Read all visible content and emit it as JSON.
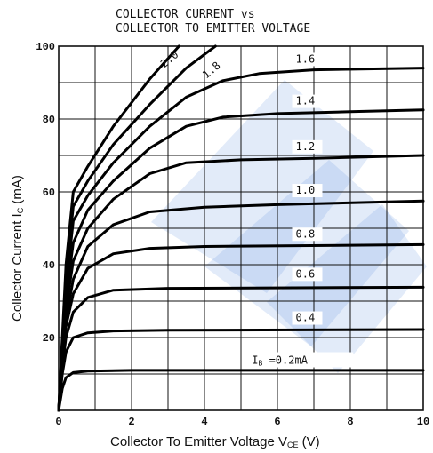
{
  "chart_data": {
    "type": "line",
    "title": [
      "COLLECTOR CURRENT vs",
      "COLLECTOR TO EMITTER VOLTAGE"
    ],
    "xlabel": "Collector To Emitter Voltage  V",
    "xlabel_sub": "CE",
    "xlabel_unit": " (V)",
    "ylabel": "Collector Current  I",
    "ylabel_sub": "C",
    "ylabel_unit": " (mA)",
    "xlim": [
      0,
      10
    ],
    "ylim": [
      0,
      100
    ],
    "grid": true,
    "x_ticks": [
      {
        "value": 0,
        "label": "0"
      },
      {
        "value": 2,
        "label": "2"
      },
      {
        "value": 4,
        "label": "4"
      },
      {
        "value": 6,
        "label": "6"
      },
      {
        "value": 8,
        "label": "8"
      },
      {
        "value": 10,
        "label": "10"
      }
    ],
    "y_ticks": [
      {
        "value": 20,
        "label": "20"
      },
      {
        "value": 40,
        "label": "40"
      },
      {
        "value": 60,
        "label": "60"
      },
      {
        "value": 80,
        "label": "80"
      },
      {
        "value": 100,
        "label": "100"
      }
    ],
    "series": [
      {
        "name": "0.2",
        "label": "Iʙ =0.2mA",
        "points": [
          [
            0,
            0
          ],
          [
            0.1,
            6
          ],
          [
            0.2,
            9
          ],
          [
            0.4,
            10.4
          ],
          [
            0.8,
            10.8
          ],
          [
            2,
            11
          ],
          [
            10,
            11
          ]
        ]
      },
      {
        "name": "0.4",
        "label": "0.4",
        "points": [
          [
            0,
            0
          ],
          [
            0.1,
            10
          ],
          [
            0.2,
            16
          ],
          [
            0.4,
            20
          ],
          [
            0.8,
            21.3
          ],
          [
            1.5,
            21.8
          ],
          [
            3,
            22
          ],
          [
            10,
            22.2
          ]
        ]
      },
      {
        "name": "0.6",
        "label": "0.6",
        "points": [
          [
            0,
            0
          ],
          [
            0.1,
            12
          ],
          [
            0.2,
            20
          ],
          [
            0.4,
            27
          ],
          [
            0.8,
            31
          ],
          [
            1.5,
            33
          ],
          [
            3,
            33.5
          ],
          [
            10,
            33.8
          ]
        ]
      },
      {
        "name": "0.8",
        "label": "0.8",
        "points": [
          [
            0,
            0
          ],
          [
            0.1,
            14
          ],
          [
            0.2,
            23
          ],
          [
            0.4,
            32
          ],
          [
            0.8,
            39
          ],
          [
            1.5,
            43
          ],
          [
            2.5,
            44.5
          ],
          [
            4,
            45
          ],
          [
            10,
            45.5
          ]
        ]
      },
      {
        "name": "1.0",
        "label": "1.0",
        "points": [
          [
            0,
            0
          ],
          [
            0.1,
            15
          ],
          [
            0.2,
            25
          ],
          [
            0.4,
            36
          ],
          [
            0.8,
            45
          ],
          [
            1.5,
            51
          ],
          [
            2.5,
            54.5
          ],
          [
            4,
            55.8
          ],
          [
            6,
            56.5
          ],
          [
            10,
            57.5
          ]
        ]
      },
      {
        "name": "1.2",
        "label": "1.2",
        "points": [
          [
            0,
            0
          ],
          [
            0.1,
            16
          ],
          [
            0.2,
            28
          ],
          [
            0.4,
            41
          ],
          [
            0.8,
            50
          ],
          [
            1.5,
            58
          ],
          [
            2.5,
            65
          ],
          [
            3.5,
            68
          ],
          [
            5,
            68.8
          ],
          [
            7,
            69.2
          ],
          [
            10,
            70
          ]
        ]
      },
      {
        "name": "1.4",
        "label": "1.4",
        "points": [
          [
            0,
            0
          ],
          [
            0.1,
            17
          ],
          [
            0.2,
            31
          ],
          [
            0.4,
            46
          ],
          [
            0.8,
            55
          ],
          [
            1.5,
            63
          ],
          [
            2.5,
            72
          ],
          [
            3.5,
            78
          ],
          [
            4.5,
            80.5
          ],
          [
            6,
            81.5
          ],
          [
            8,
            82
          ],
          [
            10,
            82.5
          ]
        ]
      },
      {
        "name": "1.6",
        "label": "1.6",
        "points": [
          [
            0,
            0
          ],
          [
            0.1,
            18
          ],
          [
            0.2,
            34
          ],
          [
            0.4,
            52
          ],
          [
            0.8,
            59
          ],
          [
            1.5,
            68
          ],
          [
            2.5,
            78
          ],
          [
            3.5,
            86
          ],
          [
            4.5,
            90.5
          ],
          [
            5.5,
            92.5
          ],
          [
            7,
            93.5
          ],
          [
            10,
            94
          ]
        ]
      },
      {
        "name": "1.8",
        "label": "1.8",
        "points": [
          [
            0,
            0
          ],
          [
            0.1,
            19
          ],
          [
            0.2,
            37
          ],
          [
            0.4,
            56
          ],
          [
            0.8,
            63
          ],
          [
            1.5,
            73
          ],
          [
            2.5,
            84
          ],
          [
            3.5,
            94
          ],
          [
            4.3,
            100
          ]
        ]
      },
      {
        "name": "2.0",
        "label": "2.0",
        "points": [
          [
            0,
            0
          ],
          [
            0.1,
            20
          ],
          [
            0.2,
            40
          ],
          [
            0.4,
            60
          ],
          [
            0.8,
            67
          ],
          [
            1.5,
            78
          ],
          [
            2.5,
            91
          ],
          [
            3.3,
            100
          ]
        ]
      }
    ],
    "curve_labels": [
      {
        "series": "1.6",
        "text": "1.6",
        "x": 6.5,
        "y": 95.5
      },
      {
        "series": "1.4",
        "text": "1.4",
        "x": 6.5,
        "y": 84
      },
      {
        "series": "1.2",
        "text": "1.2",
        "x": 6.5,
        "y": 71.5
      },
      {
        "series": "1.0",
        "text": "1.0",
        "x": 6.5,
        "y": 59.5
      },
      {
        "series": "0.8",
        "text": "0.8",
        "x": 6.5,
        "y": 47.5
      },
      {
        "series": "0.6",
        "text": "0.6",
        "x": 6.5,
        "y": 36.5
      },
      {
        "series": "0.4",
        "text": "0.4",
        "x": 6.5,
        "y": 24.5
      },
      {
        "series": "0.2",
        "text": "I",
        "x": 5.5,
        "y": 13.5
      }
    ],
    "ib_label": {
      "prefix": "I",
      "sub": "B",
      "suffix": " =0.2mA"
    },
    "angled_labels": [
      {
        "text": "2.0",
        "x": 2.9,
        "y": 94
      },
      {
        "text": "1.8",
        "x": 4.05,
        "y": 91
      }
    ]
  }
}
